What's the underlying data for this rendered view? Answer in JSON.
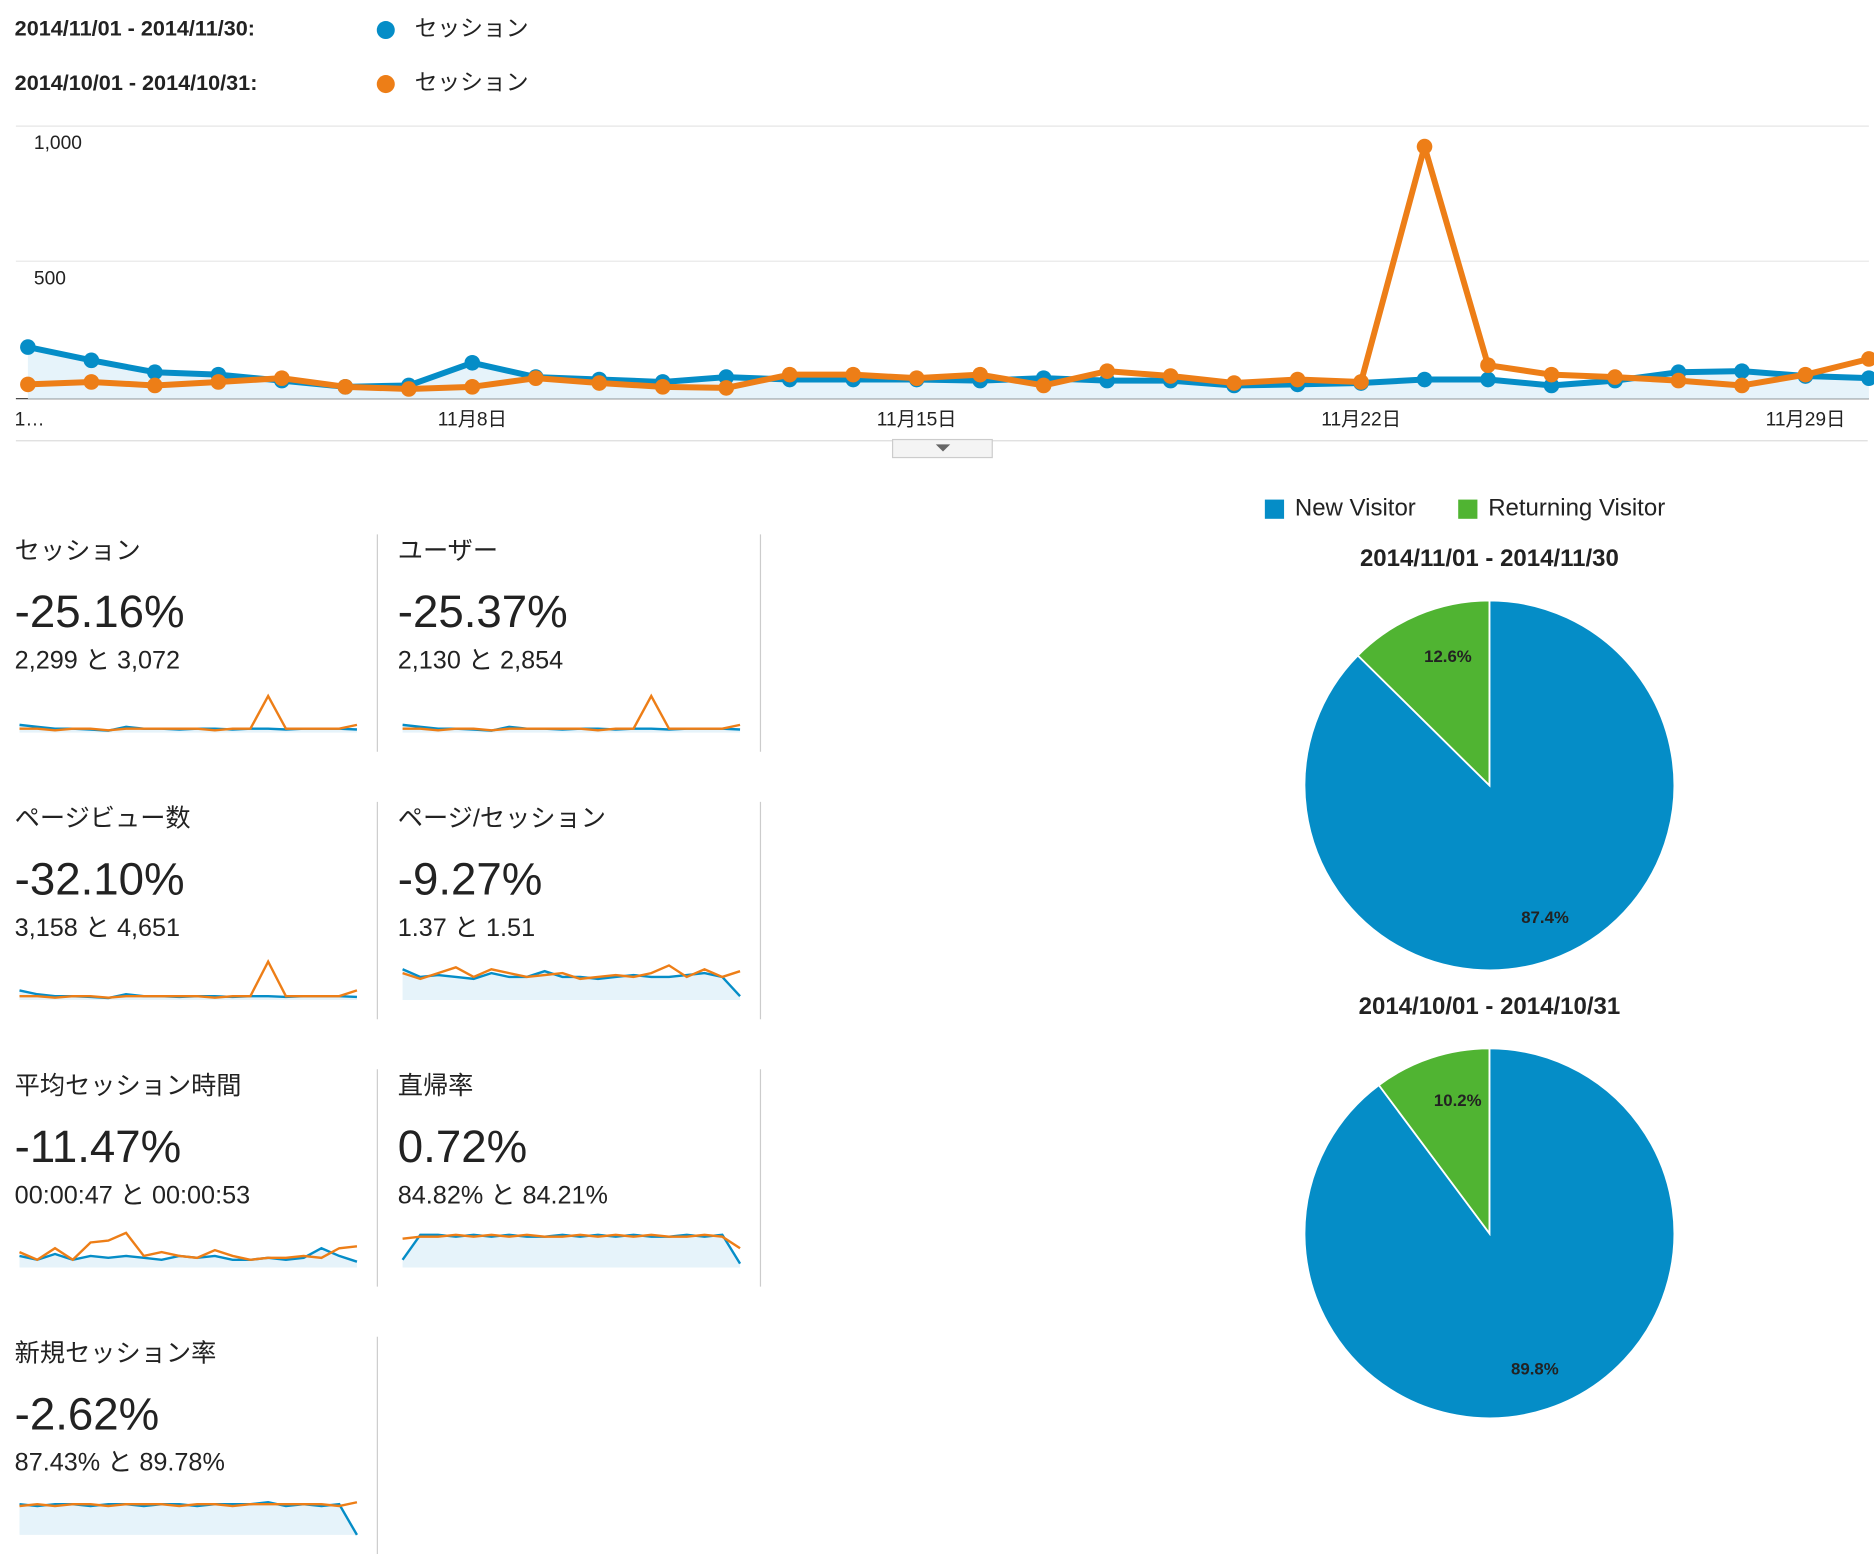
{
  "chart_data": [
    {
      "type": "line",
      "categories": [
        "1…",
        null,
        null,
        null,
        null,
        null,
        null,
        "11月8日",
        null,
        null,
        null,
        null,
        null,
        null,
        "11月15日",
        null,
        null,
        null,
        null,
        null,
        null,
        "11月22日",
        null,
        null,
        null,
        null,
        null,
        null,
        "11月29日",
        null
      ],
      "ylim": [
        0,
        1000
      ],
      "yticks": [
        500,
        {
          "value": 1000,
          "label": "1,000"
        }
      ],
      "grid": true,
      "series": [
        {
          "period": "2014/11/01 - 2014/11/30:",
          "name": "セッション",
          "color": "#058dc7",
          "values": [
            191,
            142,
            98,
            89,
            67,
            44,
            49,
            133,
            80,
            71,
            62,
            80,
            71,
            71,
            71,
            67,
            76,
            67,
            67,
            49,
            53,
            58,
            71,
            71,
            49,
            67,
            98,
            102,
            84,
            76
          ]
        },
        {
          "period": "2014/10/01 - 2014/10/31:",
          "name": "セッション",
          "color": "#ed7e17",
          "values": [
            53,
            62,
            49,
            62,
            76,
            44,
            36,
            44,
            76,
            58,
            44,
            40,
            89,
            89,
            76,
            89,
            49,
            102,
            84,
            58,
            71,
            62,
            933,
            124,
            89,
            80,
            67,
            49,
            89,
            147
          ]
        }
      ]
    },
    {
      "type": "pie",
      "title": "2014/11/01 - 2014/11/30",
      "categories": [
        "New Visitor",
        "Returning Visitor"
      ],
      "colors": [
        "#058dc7",
        "#50b432"
      ],
      "values": [
        87.4,
        12.6
      ],
      "value_labels": [
        "87.4%",
        "12.6%"
      ]
    },
    {
      "type": "pie",
      "title": "2014/10/01 - 2014/10/31",
      "categories": [
        "New Visitor",
        "Returning Visitor"
      ],
      "colors": [
        "#058dc7",
        "#50b432"
      ],
      "values": [
        89.8,
        10.2
      ],
      "value_labels": [
        "89.8%",
        "10.2%"
      ]
    }
  ],
  "metrics": [
    {
      "title": "セッション",
      "change": "-25.16%",
      "comparison": "2,299 と 3,072",
      "spark": {
        "ylim": [
          0,
          10
        ],
        "series": [
          [
            2,
            1.5,
            1,
            1,
            0.8,
            0.5,
            1.5,
            1,
            1,
            0.8,
            1,
            1,
            0.8,
            1,
            1,
            0.8,
            1,
            1,
            1,
            0.8
          ],
          [
            1,
            1,
            0.6,
            1,
            1,
            0.6,
            1,
            1,
            1,
            1,
            1,
            0.6,
            1,
            1,
            9.5,
            1,
            1,
            1,
            1,
            2
          ]
        ]
      }
    },
    {
      "title": "ユーザー",
      "change": "-25.37%",
      "comparison": "2,130 と 2,854",
      "spark": {
        "ylim": [
          0,
          10
        ],
        "series": [
          [
            2,
            1.5,
            1,
            1,
            0.8,
            0.5,
            1.5,
            1,
            1,
            0.8,
            1,
            1,
            0.8,
            1,
            1,
            0.8,
            1,
            1,
            1,
            0.8
          ],
          [
            1,
            1,
            0.6,
            1,
            1,
            0.6,
            1,
            1,
            1,
            1,
            1,
            0.6,
            1,
            1,
            9.5,
            1,
            1,
            1,
            1,
            2
          ]
        ]
      }
    },
    {
      "title": "ページビュー数",
      "change": "-32.10%",
      "comparison": "3,158 と 4,651",
      "spark": {
        "ylim": [
          0,
          10
        ],
        "series": [
          [
            2.5,
            1.5,
            1,
            1,
            0.8,
            0.5,
            1.5,
            1,
            1,
            0.8,
            1,
            1,
            0.8,
            1,
            1,
            0.8,
            1,
            1,
            1,
            0.8
          ],
          [
            1,
            1,
            0.6,
            1,
            1,
            0.6,
            1,
            1,
            1,
            1,
            1,
            0.6,
            1,
            1,
            10,
            1,
            1,
            1,
            1,
            2.5
          ]
        ]
      }
    },
    {
      "title": "ページ/セッション",
      "change": "-9.27%",
      "comparison": "1.37 と 1.51",
      "spark": {
        "ylim": [
          0,
          10
        ],
        "series": [
          [
            8,
            6,
            6.5,
            6,
            5.5,
            7,
            6,
            6,
            7.5,
            6,
            6,
            5.5,
            6,
            6.5,
            6,
            6,
            6.5,
            7,
            6,
            1
          ],
          [
            7,
            5.5,
            7,
            8.5,
            6,
            8,
            7,
            6,
            6.5,
            7,
            5.5,
            6,
            6.5,
            6,
            7,
            9,
            6,
            8,
            6,
            7.5
          ]
        ]
      }
    },
    {
      "title": "平均セッション時間",
      "change": "-11.47%",
      "comparison": "00:00:47 と 00:00:53",
      "spark": {
        "ylim": [
          0,
          10
        ],
        "series": [
          [
            3,
            2,
            3.5,
            2,
            3,
            2.5,
            3,
            2.5,
            2,
            3,
            2.5,
            3,
            2,
            2,
            2.5,
            2,
            2.5,
            5,
            3,
            1.5
          ],
          [
            4,
            2,
            5,
            2,
            6.5,
            7,
            9,
            3,
            4,
            3,
            2.5,
            4.5,
            3,
            2,
            2.5,
            2.5,
            3,
            2.5,
            5,
            5.5
          ]
        ]
      }
    },
    {
      "title": "直帰率",
      "change": "0.72%",
      "comparison": "84.82% と 84.21%",
      "spark": {
        "ylim": [
          0,
          10
        ],
        "series": [
          [
            2,
            8.5,
            8.5,
            8,
            8.5,
            8,
            8.5,
            8,
            8,
            8.5,
            8,
            8.5,
            8,
            8.5,
            8,
            8,
            8.5,
            8,
            8.5,
            1
          ],
          [
            7.5,
            8,
            8,
            8.5,
            8,
            8.5,
            8,
            8.5,
            8,
            8,
            8.5,
            8,
            8.5,
            8,
            8.5,
            8,
            8,
            8.5,
            8,
            5
          ]
        ]
      }
    },
    {
      "title": "新規セッション率",
      "change": "-2.62%",
      "comparison": "87.43% と 89.78%",
      "spark": {
        "ylim": [
          0,
          10
        ],
        "series": [
          [
            8,
            7.5,
            8,
            8,
            7.5,
            8,
            8,
            7.5,
            8,
            8,
            7.5,
            8,
            8,
            8,
            8.5,
            7.5,
            8,
            7.5,
            8,
            0
          ],
          [
            7.5,
            8,
            7.5,
            8,
            8,
            7.5,
            8,
            8,
            8,
            7.5,
            8,
            8,
            7.5,
            8,
            8,
            8,
            8,
            8,
            7.5,
            8.5
          ]
        ]
      }
    }
  ]
}
